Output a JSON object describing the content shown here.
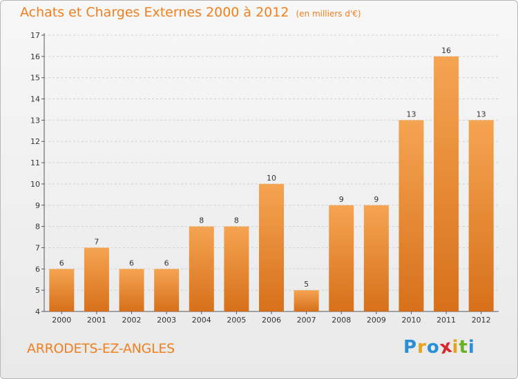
{
  "header": {
    "title": "Achats et Charges Externes 2000 à 2012",
    "subtitle": "(en milliers d'€)"
  },
  "footer": {
    "town": "ARRODETS-EZ-ANGLES",
    "logo": {
      "text": "Proxiti",
      "letters": [
        {
          "ch": "P",
          "color": "#2a8fd6"
        },
        {
          "ch": "r",
          "color": "#e8a21a"
        },
        {
          "ch": "o",
          "color": "#2a8fd6"
        },
        {
          "ch": "x",
          "color": "#d9262b"
        },
        {
          "ch": "i",
          "color": "#e8a21a"
        },
        {
          "ch": "t",
          "color": "#6ab023"
        },
        {
          "ch": "i",
          "color": "#2a8fd6"
        }
      ]
    }
  },
  "colors": {
    "accent": "#f07f1e",
    "bar_top": "#f5a452",
    "bar_bottom": "#d7701a",
    "grid": "#d0d0d0",
    "axis": "#555555"
  },
  "chart_data": {
    "type": "bar",
    "title": "Achats et Charges Externes 2000 à 2012",
    "subtitle": "(en milliers d'€)",
    "xlabel": "",
    "ylabel": "",
    "categories": [
      "2000",
      "2001",
      "2002",
      "2003",
      "2004",
      "2005",
      "2006",
      "2007",
      "2008",
      "2009",
      "2010",
      "2011",
      "2012"
    ],
    "values": [
      6,
      7,
      6,
      6,
      8,
      8,
      10,
      5,
      9,
      9,
      13,
      16,
      13
    ],
    "ylim": [
      4,
      17
    ],
    "yticks": [
      4,
      5,
      6,
      7,
      8,
      9,
      10,
      11,
      12,
      13,
      14,
      15,
      16,
      17
    ],
    "grid": "horizontal",
    "data_labels": true
  }
}
